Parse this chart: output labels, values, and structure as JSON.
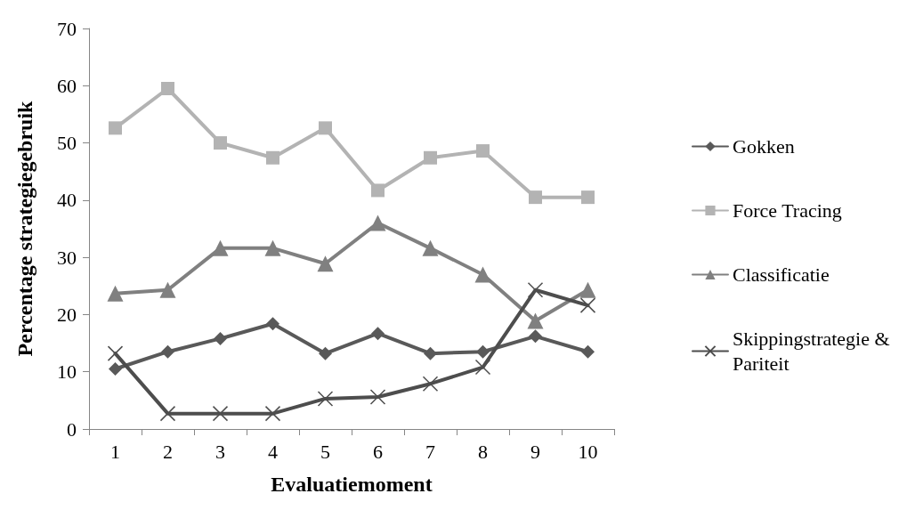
{
  "chart_data": {
    "type": "line",
    "xlabel": "Evaluatiemoment",
    "ylabel": "Percentage strategiegebruik",
    "categories": [
      "1",
      "2",
      "3",
      "4",
      "5",
      "6",
      "7",
      "8",
      "9",
      "10"
    ],
    "series": [
      {
        "name": "Gokken",
        "color": "#595959",
        "marker": "diamond",
        "values": [
          10.5,
          13.5,
          15.8,
          18.4,
          13.2,
          16.7,
          13.2,
          13.5,
          16.2,
          13.5
        ]
      },
      {
        "name": "Force Tracing",
        "color": "#b3b3b3",
        "marker": "square",
        "values": [
          52.6,
          59.5,
          50,
          47.4,
          52.6,
          41.7,
          47.4,
          48.6,
          40.5,
          40.5
        ]
      },
      {
        "name": "Classificatie",
        "color": "#808080",
        "marker": "triangle",
        "values": [
          23.7,
          24.3,
          31.6,
          31.6,
          28.9,
          36,
          31.6,
          27,
          18.9,
          24.3
        ]
      },
      {
        "name": "Skippingstrategie & Pariteit",
        "color": "#4d4d4d",
        "marker": "cross",
        "values": [
          13.2,
          2.7,
          2.7,
          2.7,
          5.3,
          5.6,
          7.9,
          10.8,
          24.3,
          21.6
        ]
      }
    ],
    "ylim": [
      0,
      70
    ],
    "yticks": [
      0,
      10,
      20,
      30,
      40,
      50,
      60,
      70
    ],
    "grid": false,
    "legend": "right",
    "line_style": "solid"
  }
}
